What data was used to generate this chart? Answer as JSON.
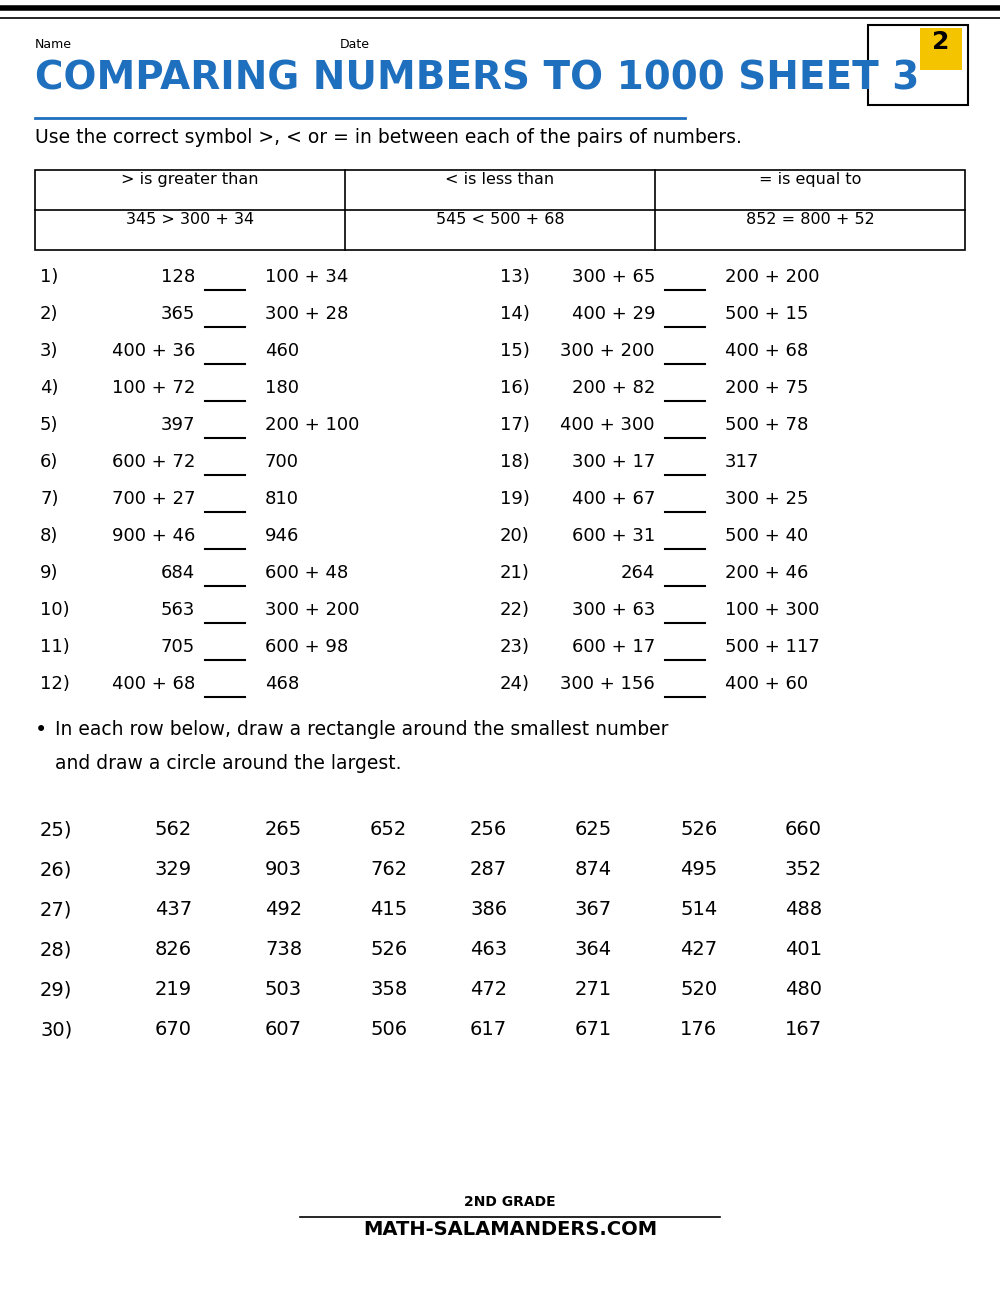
{
  "title": "COMPARING NUMBERS TO 1000 SHEET 3",
  "subtitle": "Use the correct symbol >, < or = in between each of the pairs of numbers.",
  "name_label": "Name",
  "date_label": "Date",
  "table_headers": [
    "> is greater than",
    "< is less than",
    "= is equal to"
  ],
  "table_examples": [
    "345 > 300 + 34",
    "545 < 500 + 68",
    "852 = 800 + 52"
  ],
  "problems_left": [
    [
      "1)",
      "128",
      "100 + 34"
    ],
    [
      "2)",
      "365",
      "300 + 28"
    ],
    [
      "3)",
      "400 + 36",
      "460"
    ],
    [
      "4)",
      "100 + 72",
      "180"
    ],
    [
      "5)",
      "397",
      "200 + 100"
    ],
    [
      "6)",
      "600 + 72",
      "700"
    ],
    [
      "7)",
      "700 + 27",
      "810"
    ],
    [
      "8)",
      "900 + 46",
      "946"
    ],
    [
      "9)",
      "684",
      "600 + 48"
    ],
    [
      "10)",
      "563",
      "300 + 200"
    ],
    [
      "11)",
      "705",
      "600 + 98"
    ],
    [
      "12)",
      "400 + 68",
      "468"
    ]
  ],
  "problems_right": [
    [
      "13)",
      "300 + 65",
      "200 + 200"
    ],
    [
      "14)",
      "400 + 29",
      "500 + 15"
    ],
    [
      "15)",
      "300 + 200",
      "400 + 68"
    ],
    [
      "16)",
      "200 + 82",
      "200 + 75"
    ],
    [
      "17)",
      "400 + 300",
      "500 + 78"
    ],
    [
      "18)",
      "300 + 17",
      "317"
    ],
    [
      "19)",
      "400 + 67",
      "300 + 25"
    ],
    [
      "20)",
      "600 + 31",
      "500 + 40"
    ],
    [
      "21)",
      "264",
      "200 + 46"
    ],
    [
      "22)",
      "300 + 63",
      "100 + 300"
    ],
    [
      "23)",
      "600 + 17",
      "500 + 117"
    ],
    [
      "24)",
      "300 + 156",
      "400 + 60"
    ]
  ],
  "bullet_line1": "In each row below, draw a rectangle around the smallest number",
  "bullet_line2": "and draw a circle around the largest.",
  "number_rows": [
    [
      "25)",
      "562",
      "265",
      "652",
      "256",
      "625",
      "526",
      "660"
    ],
    [
      "26)",
      "329",
      "903",
      "762",
      "287",
      "874",
      "495",
      "352"
    ],
    [
      "27)",
      "437",
      "492",
      "415",
      "386",
      "367",
      "514",
      "488"
    ],
    [
      "28)",
      "826",
      "738",
      "526",
      "463",
      "364",
      "427",
      "401"
    ],
    [
      "29)",
      "219",
      "503",
      "358",
      "472",
      "271",
      "520",
      "480"
    ],
    [
      "30)",
      "670",
      "607",
      "506",
      "617",
      "671",
      "176",
      "167"
    ]
  ],
  "title_color": "#1F6FBF",
  "bg_color": "#FFFFFF",
  "text_color": "#000000",
  "footer_line1": "2ND GRADE",
  "footer_line2": "ATH-SALAMANDERS.COM",
  "dpi": 100,
  "fig_w": 10.0,
  "fig_h": 12.94
}
